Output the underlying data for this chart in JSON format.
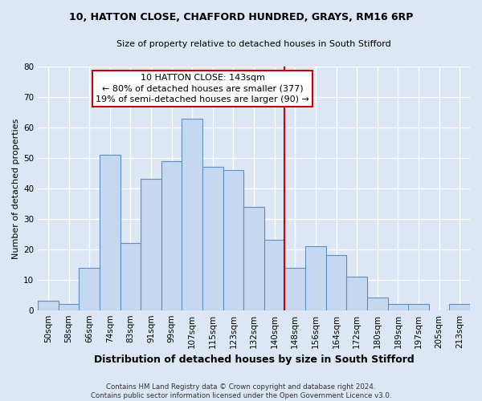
{
  "title_line1": "10, HATTON CLOSE, CHAFFORD HUNDRED, GRAYS, RM16 6RP",
  "title_line2": "Size of property relative to detached houses in South Stifford",
  "xlabel": "Distribution of detached houses by size in South Stifford",
  "ylabel": "Number of detached properties",
  "footnote": "Contains HM Land Registry data © Crown copyright and database right 2024.\nContains public sector information licensed under the Open Government Licence v3.0.",
  "bar_labels": [
    "50sqm",
    "58sqm",
    "66sqm",
    "74sqm",
    "83sqm",
    "91sqm",
    "99sqm",
    "107sqm",
    "115sqm",
    "123sqm",
    "132sqm",
    "140sqm",
    "148sqm",
    "156sqm",
    "164sqm",
    "172sqm",
    "180sqm",
    "189sqm",
    "197sqm",
    "205sqm",
    "213sqm"
  ],
  "bar_values": [
    3,
    2,
    14,
    51,
    22,
    43,
    49,
    63,
    47,
    46,
    34,
    23,
    14,
    21,
    18,
    11,
    4,
    2,
    2,
    0,
    2
  ],
  "bar_color": "#c5d8f0",
  "bar_edge_color": "#5b8fc9",
  "background_color": "#dce6f5",
  "grid_color": "#ffffff",
  "ylim": [
    0,
    80
  ],
  "yticks": [
    0,
    10,
    20,
    30,
    40,
    50,
    60,
    70,
    80
  ],
  "annotation_text": "10 HATTON CLOSE: 143sqm\n← 80% of detached houses are smaller (377)\n19% of semi-detached houses are larger (90) →",
  "vline_bar_index": 11,
  "annotation_box_color": "#ffffff",
  "annotation_box_edge": "#cc0000",
  "vline_color": "#cc0000",
  "title_fontsize": 9,
  "subtitle_fontsize": 8,
  "ylabel_fontsize": 8,
  "xlabel_fontsize": 9,
  "tick_fontsize": 7.5,
  "annot_fontsize": 8
}
